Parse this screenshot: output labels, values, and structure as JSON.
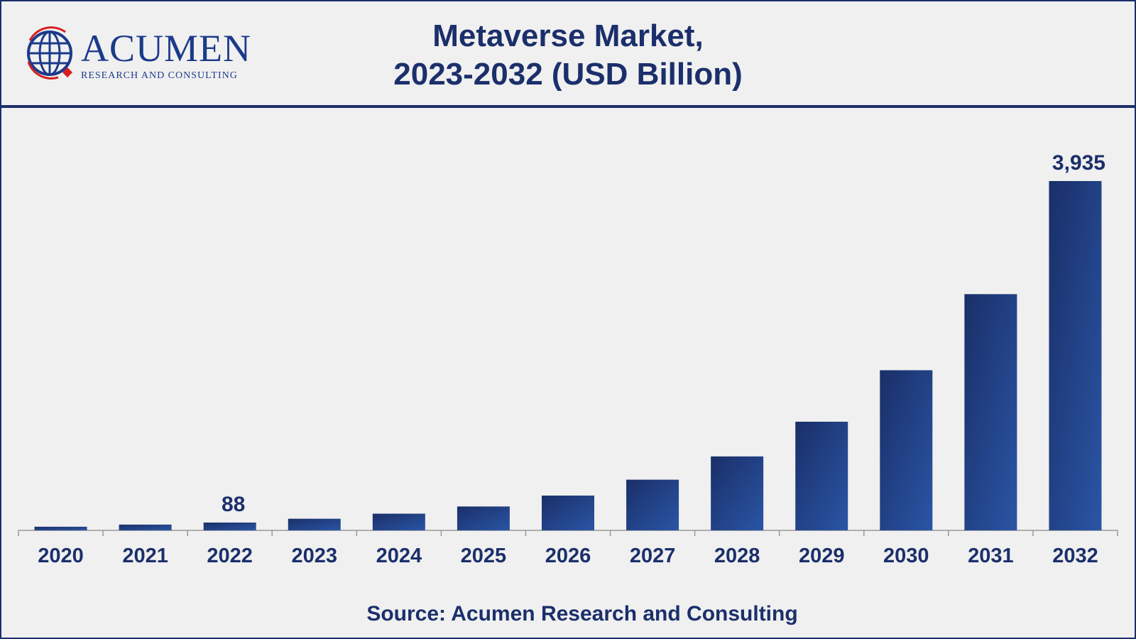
{
  "logo": {
    "name": "Acumen",
    "subtitle": "Research and Consulting"
  },
  "chart_data": {
    "type": "bar",
    "title": "Metaverse Market, 2023-2032 (USD Billion)",
    "title_lines": [
      "Metaverse Market,",
      "2023-2032 (USD Billion)"
    ],
    "xlabel": "",
    "ylabel": "",
    "categories": [
      "2020",
      "2021",
      "2022",
      "2023",
      "2024",
      "2025",
      "2026",
      "2027",
      "2028",
      "2029",
      "2030",
      "2031",
      "2032"
    ],
    "values": [
      41,
      65,
      88,
      131,
      188,
      269,
      392,
      571,
      833,
      1224,
      1804,
      2661,
      3935
    ],
    "data_labels": {
      "2022": "88",
      "2032": "3,935"
    },
    "ylim": [
      0,
      3935
    ],
    "grid": false,
    "bar_color": "#1f3f85"
  },
  "source": "Source: Acumen Research and Consulting"
}
